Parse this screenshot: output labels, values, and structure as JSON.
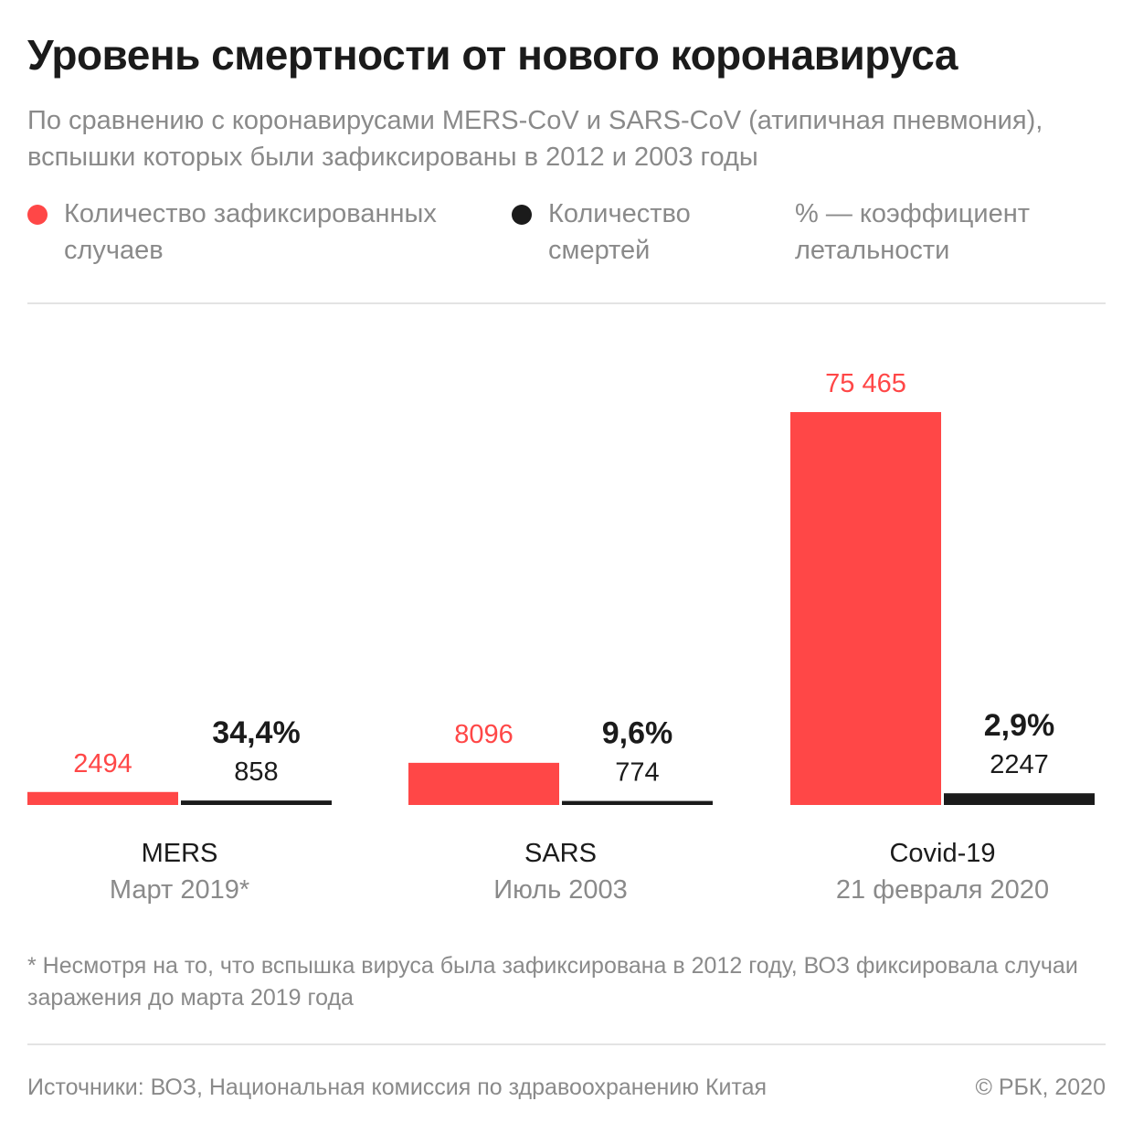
{
  "header": {
    "title": "Уровень смертности от нового коронавируса",
    "subtitle": "По сравнению с коронавирусами MERS-CoV и SARS-CoV (атипичная пневмония), вспышки которых были зафиксированы в 2012 и 2003 годы"
  },
  "legend": {
    "cases": "Количество зафиксированных случаев",
    "deaths": "Количество смертей",
    "rate": "% — коэффициент летальности"
  },
  "colors": {
    "cases": "#ff4747",
    "deaths": "#1b1b1b",
    "muted": "#8a8a8a"
  },
  "chart_data": {
    "type": "bar",
    "series": [
      {
        "name": "Количество зафиксированных случаев",
        "values": [
          2494,
          8096,
          75465
        ],
        "labels": [
          "2494",
          "8096",
          "75 465"
        ]
      },
      {
        "name": "Количество смертей",
        "values": [
          858,
          774,
          2247
        ],
        "labels": [
          "858",
          "774",
          "2247"
        ]
      }
    ],
    "groups": [
      {
        "name": "MERS",
        "date": "Март 2019*",
        "rate": "34,4%"
      },
      {
        "name": "SARS",
        "date": "Июль 2003",
        "rate": "9,6%"
      },
      {
        "name": "Covid-19",
        "date": "21 февраля 2020",
        "rate": "2,9%"
      }
    ],
    "ylim": [
      0,
      75465
    ]
  },
  "footnote": "* Несмотря на то, что вспышка вируса была зафиксирована в 2012 году, ВОЗ фиксировала случаи заражения до марта 2019 года",
  "footer": {
    "source": "Источники: ВОЗ, Национальная комиссия по здравоохранению Китая",
    "copyright": "© РБК, 2020"
  }
}
